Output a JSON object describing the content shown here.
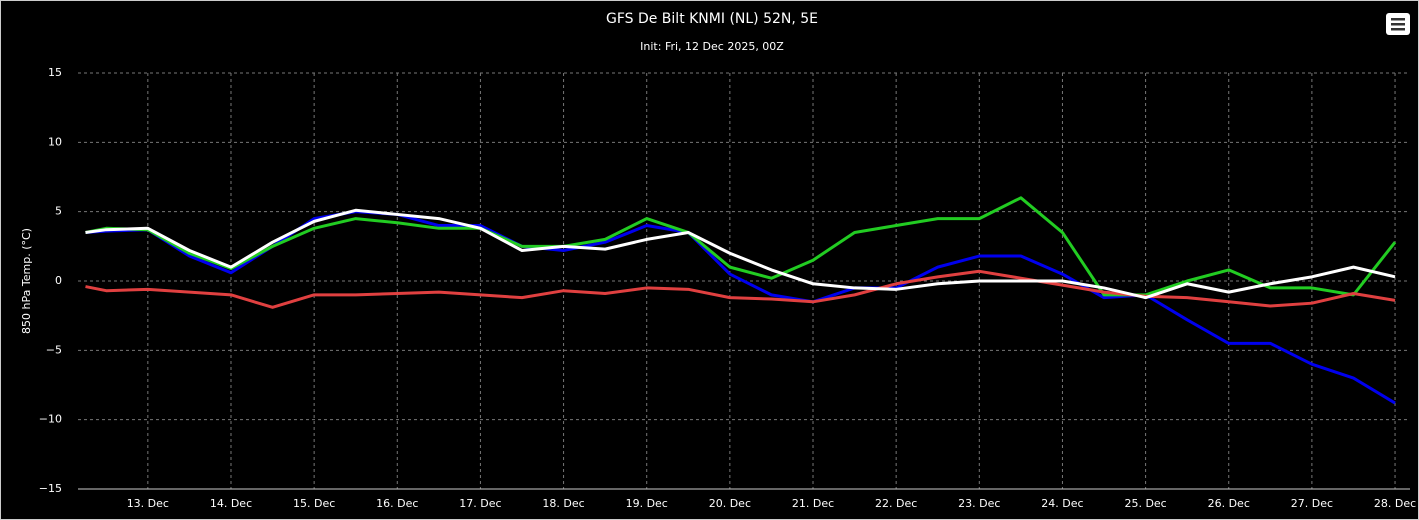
{
  "chart_data": {
    "type": "line",
    "title": "GFS De Bilt KNMI (NL) 52N, 5E",
    "subtitle": "Init: Fri, 12 Dec 2025, 00Z",
    "y_label": "850 hPa Temp. (°C)",
    "x": [
      12.25,
      12.5,
      13,
      13.5,
      14,
      14.5,
      15,
      15.5,
      16,
      16.5,
      17,
      17.5,
      18,
      18.5,
      19,
      19.5,
      20,
      20.5,
      21,
      21.5,
      22,
      22.5,
      23,
      23.5,
      24,
      24.5,
      25,
      25.5,
      26,
      26.5,
      27,
      27.5,
      28
    ],
    "series": [
      {
        "color": "#0000ee",
        "values": [
          3.5,
          3.6,
          3.7,
          1.8,
          0.6,
          2.5,
          4.5,
          5.0,
          4.8,
          4.0,
          4.0,
          2.5,
          2.2,
          2.8,
          4.0,
          3.5,
          0.5,
          -1.0,
          -1.5,
          -0.5,
          -0.5,
          1.0,
          1.8,
          1.8,
          0.5,
          -1.2,
          -1.0,
          -2.8,
          -4.5,
          -4.5,
          -6.0,
          -7.0,
          -8.8
        ]
      },
      {
        "color": "#22cc22",
        "values": [
          3.5,
          3.8,
          3.7,
          2.0,
          0.9,
          2.5,
          3.8,
          4.5,
          4.2,
          3.8,
          3.8,
          2.5,
          2.5,
          3.0,
          4.5,
          3.5,
          1.0,
          0.2,
          1.5,
          3.5,
          4.0,
          4.5,
          4.5,
          6.0,
          3.5,
          -1.0,
          -1.0,
          0.0,
          0.8,
          -0.5,
          -0.5,
          -1.0,
          2.8
        ]
      },
      {
        "color": "#e04040",
        "values": [
          -0.4,
          -0.7,
          -0.6,
          -0.8,
          -1.0,
          -1.9,
          -1.0,
          -1.0,
          -0.9,
          -0.8,
          -1.0,
          -1.2,
          -0.7,
          -0.9,
          -0.5,
          -0.6,
          -1.2,
          -1.3,
          -1.5,
          -1.0,
          -0.2,
          0.3,
          0.7,
          0.2,
          -0.3,
          -0.8,
          -1.1,
          -1.2,
          -1.5,
          -1.8,
          -1.6,
          -0.9,
          -1.4
        ]
      },
      {
        "color": "#ffffff",
        "values": [
          3.5,
          3.7,
          3.8,
          2.2,
          1.0,
          2.8,
          4.3,
          5.1,
          4.8,
          4.5,
          3.8,
          2.2,
          2.5,
          2.3,
          3.0,
          3.5,
          2.0,
          0.8,
          -0.2,
          -0.5,
          -0.6,
          -0.2,
          0,
          0,
          0,
          -0.5,
          -1.2,
          -0.2,
          -0.8,
          -0.2,
          0.3,
          1.0,
          0.3
        ]
      }
    ],
    "xlim": [
      12.16,
      28.18
    ],
    "xticks": [
      {
        "value": 13,
        "label": "13. Dec"
      },
      {
        "value": 14,
        "label": "14. Dec"
      },
      {
        "value": 15,
        "label": "15. Dec"
      },
      {
        "value": 16,
        "label": "16. Dec"
      },
      {
        "value": 17,
        "label": "17. Dec"
      },
      {
        "value": 18,
        "label": "18. Dec"
      },
      {
        "value": 19,
        "label": "19. Dec"
      },
      {
        "value": 20,
        "label": "20. Dec"
      },
      {
        "value": 21,
        "label": "21. Dec"
      },
      {
        "value": 22,
        "label": "22. Dec"
      },
      {
        "value": 23,
        "label": "23. Dec"
      },
      {
        "value": 24,
        "label": "24. Dec"
      },
      {
        "value": 25,
        "label": "25. Dec"
      },
      {
        "value": 26,
        "label": "26. Dec"
      },
      {
        "value": 27,
        "label": "27. Dec"
      },
      {
        "value": 28,
        "label": "28. Dec"
      }
    ],
    "ylim": [
      -15,
      15
    ],
    "yticks": [
      {
        "value": -15,
        "label": "−15"
      },
      {
        "value": -10,
        "label": "−10"
      },
      {
        "value": -5,
        "label": "−5"
      },
      0,
      5,
      10,
      15
    ],
    "grid": true
  }
}
